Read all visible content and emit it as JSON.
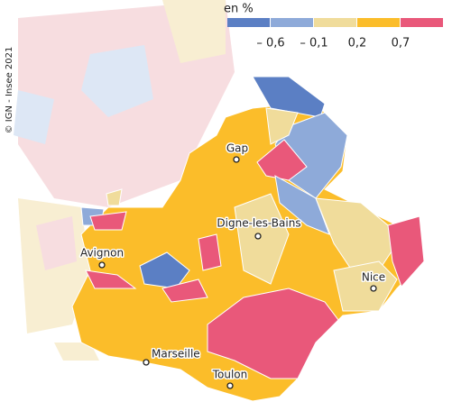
{
  "copyright": "© IGN - Insee 2021",
  "legend": {
    "title": "en %",
    "colors": [
      "#5b7fc4",
      "#8eaad9",
      "#f0dc9b",
      "#fbbd2a",
      "#e9587a"
    ],
    "labels": [
      "– 0,6",
      "– 0,1",
      "0,2",
      "0,7"
    ]
  },
  "cities": [
    "Gap",
    "Digne-les-Bains",
    "Avignon",
    "Nice",
    "Marseille",
    "Toulon"
  ]
}
